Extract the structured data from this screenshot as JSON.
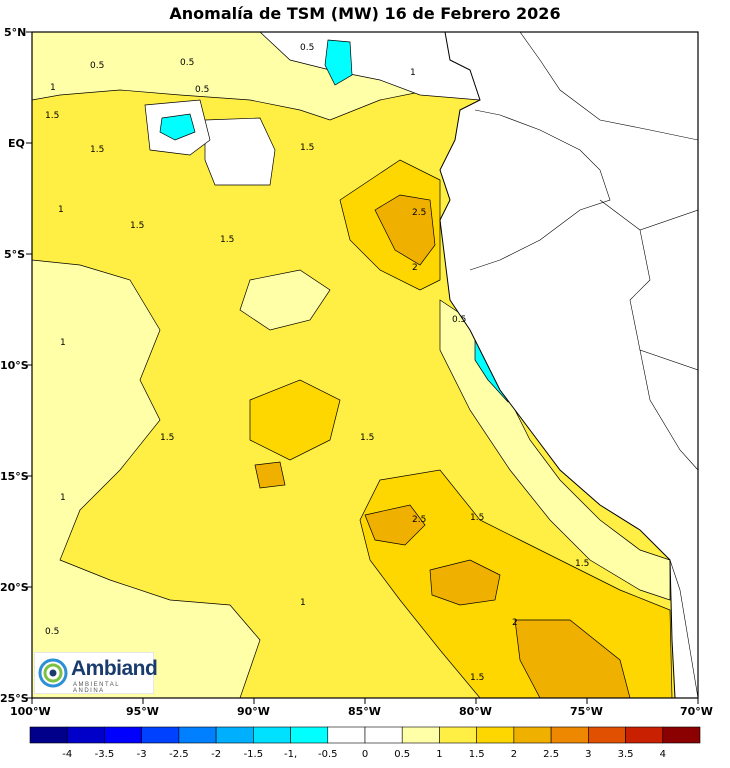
{
  "title": "Anomalía de TSM (MW) 16 de Febrero 2026",
  "lat_axis": [
    "5°N",
    "EQ",
    "5°S",
    "10°S",
    "15°S",
    "20°S",
    "25°S"
  ],
  "lon_axis": [
    "100°W",
    "95°W",
    "90°W",
    "85°W",
    "80°W",
    "75°W",
    "70°W"
  ],
  "colorbar": {
    "labels": [
      "-4",
      "-3.5",
      "-3",
      "-2.5",
      "-2",
      "-1.5",
      "-1,",
      "-0.5",
      "0",
      "0.5",
      "1",
      "1.5",
      "2",
      "2.5",
      "3",
      "3.5",
      "4"
    ],
    "colors": [
      "#00008b",
      "#0000c8",
      "#0000ff",
      "#0040ff",
      "#0080ff",
      "#00b0ff",
      "#00e0ff",
      "#00ffff",
      "#ffffff",
      "#ffffff",
      "#ffffa8",
      "#ffee44",
      "#ffd700",
      "#f0b000",
      "#ee8800",
      "#e05000",
      "#c82000",
      "#8b0000"
    ]
  },
  "contour_labels": [
    "0.5",
    "1",
    "1.5",
    "2",
    "2.5"
  ],
  "fill_colors": {
    "land": "#ffffff",
    "anom_0_05": "#ffffff",
    "anom_05_1": "#ffffa8",
    "anom_1_15": "#ffee44",
    "anom_15_2": "#ffd700",
    "anom_2_25": "#f0b000",
    "anom_neg": "#00ffff"
  },
  "logo": {
    "name": "Ambiand",
    "subtitle": "AMBIENTAL ANDINA"
  }
}
